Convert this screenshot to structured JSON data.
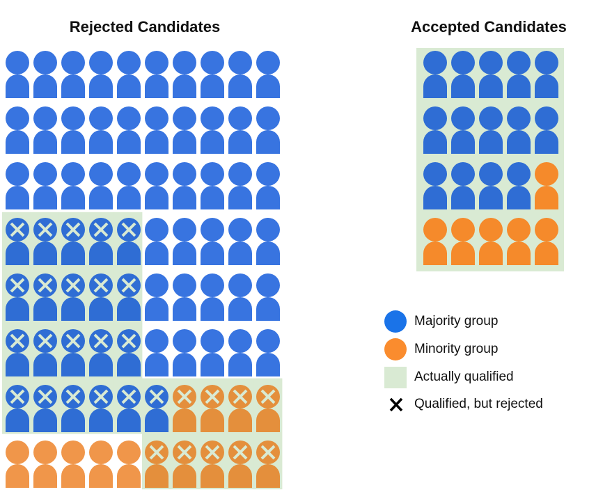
{
  "titles": {
    "rejected": "Rejected Candidates",
    "accepted": "Accepted Candidates"
  },
  "colors": {
    "majority": "#3874e0",
    "majority_qualified": "#2f6dd4",
    "minority": "#f0964a",
    "minority_qualified": "#e48f3c",
    "minority_accepted": "#f58a2b",
    "qualified_background": "#d9ead3",
    "legend_majority": "#1a73e8",
    "legend_minority": "#fa8c2e"
  },
  "rejected_grid": [
    [
      "maj",
      "maj",
      "maj",
      "maj",
      "maj",
      "maj",
      "maj",
      "maj",
      "maj",
      "maj"
    ],
    [
      "maj",
      "maj",
      "maj",
      "maj",
      "maj",
      "maj",
      "maj",
      "maj",
      "maj",
      "maj"
    ],
    [
      "maj",
      "maj",
      "maj",
      "maj",
      "maj",
      "maj",
      "maj",
      "maj",
      "maj",
      "maj"
    ],
    [
      "maj-x",
      "maj-x",
      "maj-x",
      "maj-x",
      "maj-x",
      "maj",
      "maj",
      "maj",
      "maj",
      "maj"
    ],
    [
      "maj-x",
      "maj-x",
      "maj-x",
      "maj-x",
      "maj-x",
      "maj",
      "maj",
      "maj",
      "maj",
      "maj"
    ],
    [
      "maj-x",
      "maj-x",
      "maj-x",
      "maj-x",
      "maj-x",
      "maj",
      "maj",
      "maj",
      "maj",
      "maj"
    ],
    [
      "maj-x",
      "maj-x",
      "maj-x",
      "maj-x",
      "maj-x",
      "maj-x",
      "min-x",
      "min-x",
      "min-x",
      "min-x"
    ],
    [
      "min",
      "min",
      "min",
      "min",
      "min",
      "min-x",
      "min-x",
      "min-x",
      "min-x",
      "min-x"
    ]
  ],
  "accepted_grid": [
    [
      "maj",
      "maj",
      "maj",
      "maj",
      "maj"
    ],
    [
      "maj",
      "maj",
      "maj",
      "maj",
      "maj"
    ],
    [
      "maj",
      "maj",
      "maj",
      "maj",
      "min"
    ],
    [
      "min",
      "min",
      "min",
      "min",
      "min"
    ]
  ],
  "legend": [
    {
      "icon": "majority-circle-icon",
      "label": "Majority group"
    },
    {
      "icon": "minority-circle-icon",
      "label": "Minority group"
    },
    {
      "icon": "qualified-square-icon",
      "label": "Actually qualified"
    },
    {
      "icon": "x-mark-icon",
      "label": "Qualified, but rejected"
    }
  ]
}
